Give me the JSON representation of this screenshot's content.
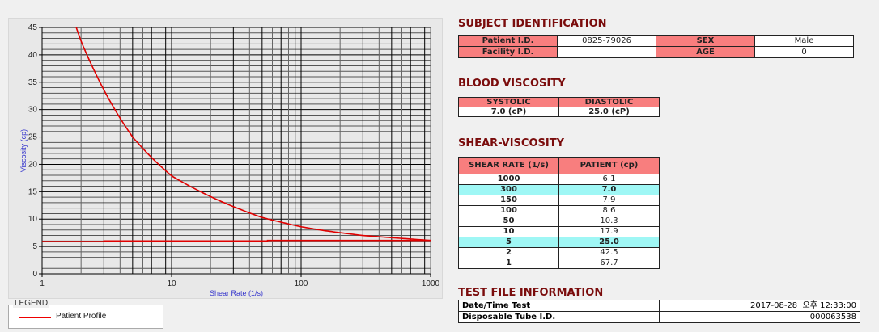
{
  "chart_data": {
    "type": "line",
    "xlabel": "Shear Rate (1/s)",
    "ylabel": "Viscosity (cp)",
    "xscale": "log",
    "xlim": [
      1,
      1000
    ],
    "ylim": [
      0,
      45
    ],
    "xticks": [
      "1",
      "10",
      "100",
      "1000"
    ],
    "yticks": [
      "0",
      "5",
      "10",
      "15",
      "20",
      "25",
      "30",
      "35",
      "40",
      "45"
    ],
    "grid": true,
    "legend_position": "bottom-left",
    "series": [
      {
        "name": "Patient Profile",
        "color": "#e00000",
        "points": [
          [
            1,
            67.7
          ],
          [
            2,
            42.5
          ],
          [
            5,
            25.0
          ],
          [
            10,
            17.9
          ],
          [
            50,
            10.3
          ],
          [
            100,
            8.6
          ],
          [
            150,
            7.9
          ],
          [
            300,
            7.0
          ],
          [
            1000,
            6.1
          ]
        ]
      },
      {
        "color": "#e00000",
        "points": [
          [
            1,
            5.9
          ],
          [
            3,
            5.9
          ],
          [
            3,
            6.0
          ],
          [
            55,
            6.0
          ],
          [
            55,
            6.1
          ],
          [
            1000,
            6.1
          ]
        ]
      }
    ]
  },
  "legend": {
    "title": "LEGEND",
    "items": [
      "Patient Profile"
    ]
  },
  "subject": {
    "title": "SUBJECT IDENTIFICATION",
    "patient_id_label": "Patient I.D.",
    "patient_id": "0825-79026",
    "sex_label": "SEX",
    "sex": "Male",
    "facility_id_label": "Facility I.D.",
    "facility_id": "",
    "age_label": "AGE",
    "age": "0"
  },
  "blood": {
    "title": "BLOOD VISCOSITY",
    "systolic_label": "SYSTOLIC",
    "diastolic_label": "DIASTOLIC",
    "systolic": "7.0 (cP)",
    "diastolic": "25.0 (cP)"
  },
  "shear": {
    "title": "SHEAR-VISCOSITY",
    "col1": "SHEAR RATE (1/s)",
    "col2": "PATIENT (cp)",
    "highlight_color": "#9ff7f5",
    "rows": [
      {
        "rate": "1000",
        "value": "6.1",
        "hl": false
      },
      {
        "rate": "300",
        "value": "7.0",
        "hl": true
      },
      {
        "rate": "150",
        "value": "7.9",
        "hl": false
      },
      {
        "rate": "100",
        "value": "8.6",
        "hl": false
      },
      {
        "rate": "50",
        "value": "10.3",
        "hl": false
      },
      {
        "rate": "10",
        "value": "17.9",
        "hl": false
      },
      {
        "rate": "5",
        "value": "25.0",
        "hl": true
      },
      {
        "rate": "2",
        "value": "42.5",
        "hl": false
      },
      {
        "rate": "1",
        "value": "67.7",
        "hl": false
      }
    ]
  },
  "testfile": {
    "title": "TEST FILE INFORMATION",
    "date_label": "Date/Time Test",
    "date": "2017-08-28  오후 12:33:00",
    "tube_label": "Disposable Tube I.D.",
    "tube": "000063538"
  }
}
